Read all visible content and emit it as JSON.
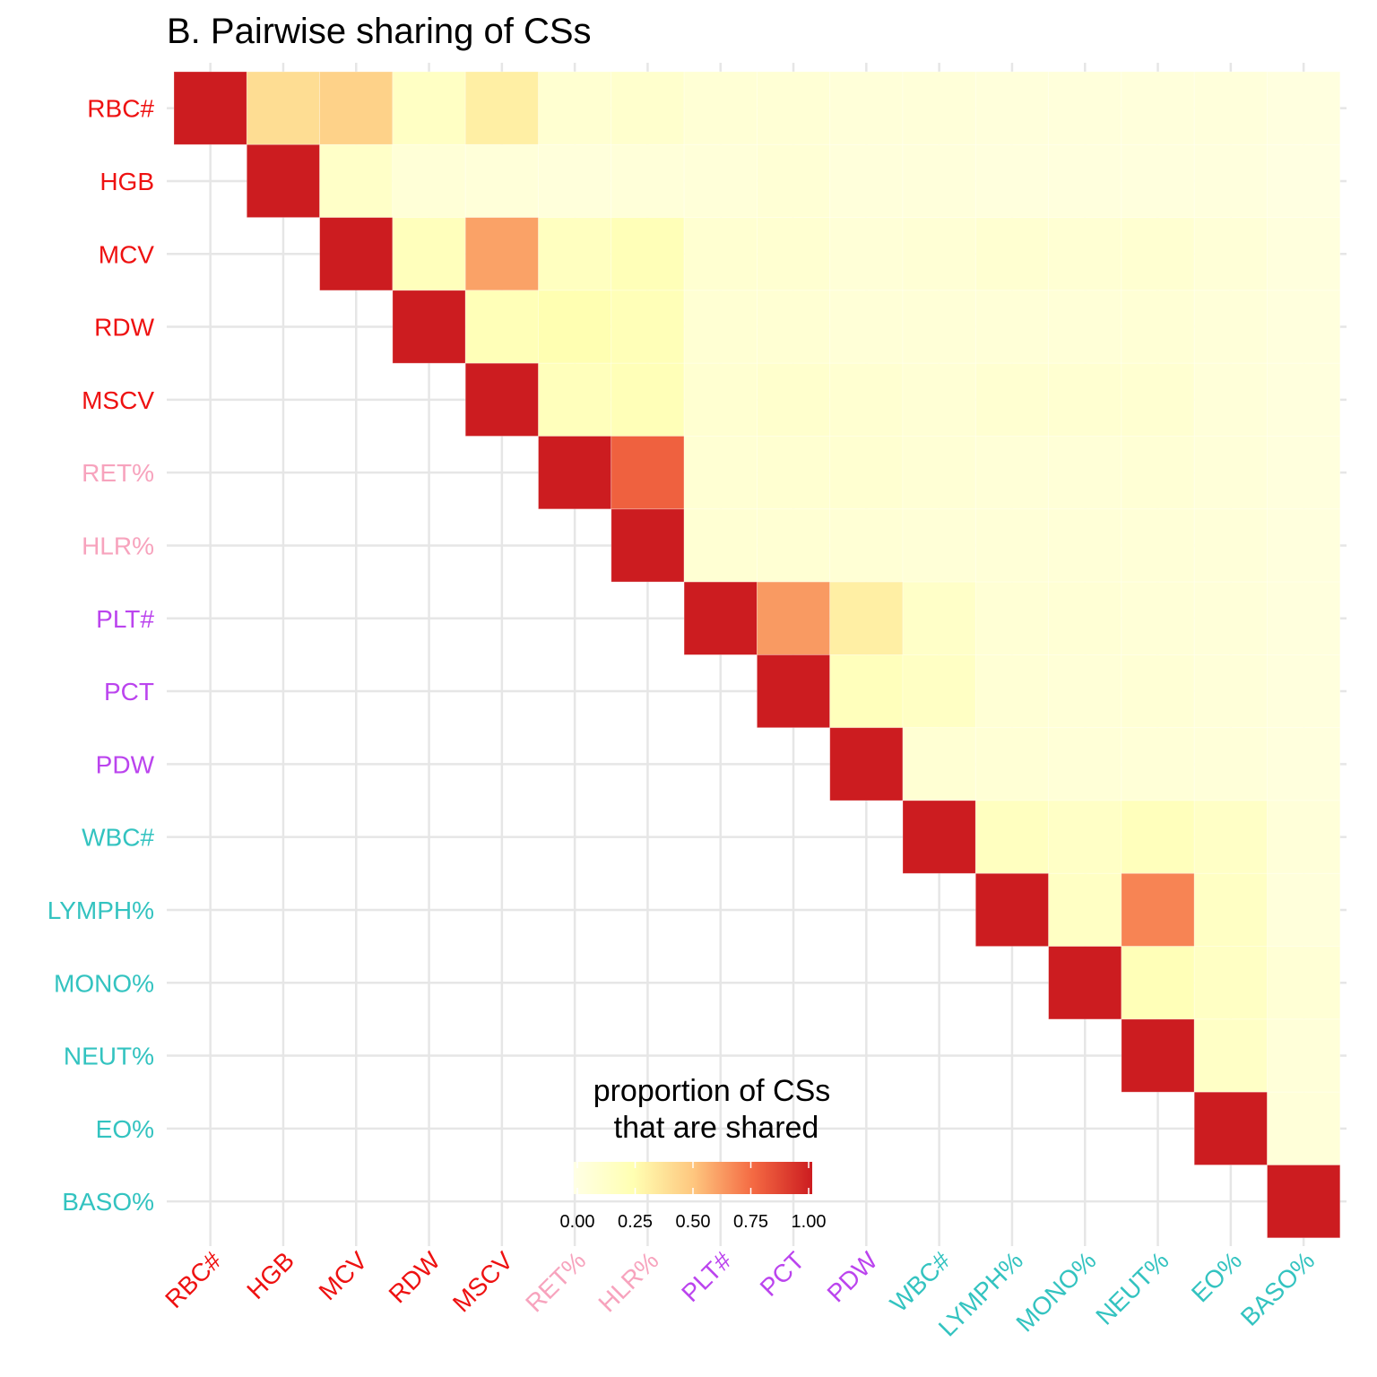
{
  "chart_data": {
    "type": "heatmap",
    "title": "B. Pairwise sharing of CSs",
    "xlabel": "",
    "ylabel": "",
    "traits": [
      "RBC#",
      "HGB",
      "MCV",
      "RDW",
      "MSCV",
      "RET%",
      "HLR%",
      "PLT#",
      "PCT",
      "PDW",
      "WBC#",
      "LYMPH%",
      "MONO%",
      "NEUT%",
      "EO%",
      "BASO%"
    ],
    "trait_colors": [
      "#ee1111",
      "#ee1111",
      "#ee1111",
      "#ee1111",
      "#ee1111",
      "#f7a3bd",
      "#f7a3bd",
      "#bb44ee",
      "#bb44ee",
      "#bb44ee",
      "#33c3c0",
      "#33c3c0",
      "#33c3c0",
      "#33c3c0",
      "#33c3c0",
      "#33c3c0"
    ],
    "layout": "upper-triangle",
    "values": [
      [
        1.0,
        0.4,
        0.45,
        0.16,
        0.32,
        0.1,
        0.12,
        0.08,
        0.08,
        0.06,
        0.06,
        0.05,
        0.05,
        0.05,
        0.05,
        0.03
      ],
      [
        null,
        1.0,
        0.14,
        0.07,
        0.06,
        0.05,
        0.06,
        0.06,
        0.08,
        0.05,
        0.05,
        0.04,
        0.04,
        0.04,
        0.04,
        0.02
      ],
      [
        null,
        null,
        1.0,
        0.2,
        0.6,
        0.18,
        0.22,
        0.1,
        0.1,
        0.07,
        0.08,
        0.1,
        0.09,
        0.1,
        0.07,
        0.04
      ],
      [
        null,
        null,
        null,
        1.0,
        0.22,
        0.25,
        0.22,
        0.09,
        0.09,
        0.07,
        0.07,
        0.07,
        0.07,
        0.08,
        0.06,
        0.04
      ],
      [
        null,
        null,
        null,
        null,
        1.0,
        0.2,
        0.22,
        0.1,
        0.12,
        0.1,
        0.08,
        0.1,
        0.1,
        0.1,
        0.06,
        0.04
      ],
      [
        null,
        null,
        null,
        null,
        null,
        1.0,
        0.78,
        0.09,
        0.1,
        0.1,
        0.08,
        0.07,
        0.07,
        0.08,
        0.06,
        0.04
      ],
      [
        null,
        null,
        null,
        null,
        null,
        null,
        1.0,
        0.09,
        0.09,
        0.08,
        0.07,
        0.07,
        0.07,
        0.07,
        0.06,
        0.04
      ],
      [
        null,
        null,
        null,
        null,
        null,
        null,
        null,
        1.0,
        0.62,
        0.32,
        0.14,
        0.08,
        0.08,
        0.07,
        0.06,
        0.04
      ],
      [
        null,
        null,
        null,
        null,
        null,
        null,
        null,
        null,
        1.0,
        0.2,
        0.16,
        0.08,
        0.07,
        0.08,
        0.06,
        0.04
      ],
      [
        null,
        null,
        null,
        null,
        null,
        null,
        null,
        null,
        null,
        1.0,
        0.09,
        0.08,
        0.07,
        0.07,
        0.06,
        0.04
      ],
      [
        null,
        null,
        null,
        null,
        null,
        null,
        null,
        null,
        null,
        null,
        1.0,
        0.18,
        0.15,
        0.2,
        0.15,
        0.06
      ],
      [
        null,
        null,
        null,
        null,
        null,
        null,
        null,
        null,
        null,
        null,
        null,
        1.0,
        0.16,
        0.68,
        0.16,
        0.05
      ],
      [
        null,
        null,
        null,
        null,
        null,
        null,
        null,
        null,
        null,
        null,
        null,
        null,
        1.0,
        0.22,
        0.16,
        0.08
      ],
      [
        null,
        null,
        null,
        null,
        null,
        null,
        null,
        null,
        null,
        null,
        null,
        null,
        null,
        1.0,
        0.15,
        0.06
      ],
      [
        null,
        null,
        null,
        null,
        null,
        null,
        null,
        null,
        null,
        null,
        null,
        null,
        null,
        null,
        1.0,
        0.06
      ],
      [
        null,
        null,
        null,
        null,
        null,
        null,
        null,
        null,
        null,
        null,
        null,
        null,
        null,
        null,
        null,
        1.0
      ]
    ],
    "color_scale": {
      "palette": "YlOrRd",
      "stops": [
        {
          "value": 0.0,
          "color": "#ffffe5"
        },
        {
          "value": 0.25,
          "color": "#ffffb2"
        },
        {
          "value": 0.5,
          "color": "#fec77f"
        },
        {
          "value": 0.75,
          "color": "#f46a43"
        },
        {
          "value": 1.0,
          "color": "#cc1c20"
        }
      ],
      "limits": [
        0,
        1
      ]
    },
    "legend": {
      "title_line1": "proportion of CSs",
      "title_line2": "that are shared",
      "ticks": [
        "0.00",
        "0.25",
        "0.50",
        "0.75",
        "1.00"
      ],
      "tick_values": [
        0,
        0.25,
        0.5,
        0.75,
        1.0
      ],
      "placement": "bottom-center-inside"
    },
    "grid": true
  }
}
